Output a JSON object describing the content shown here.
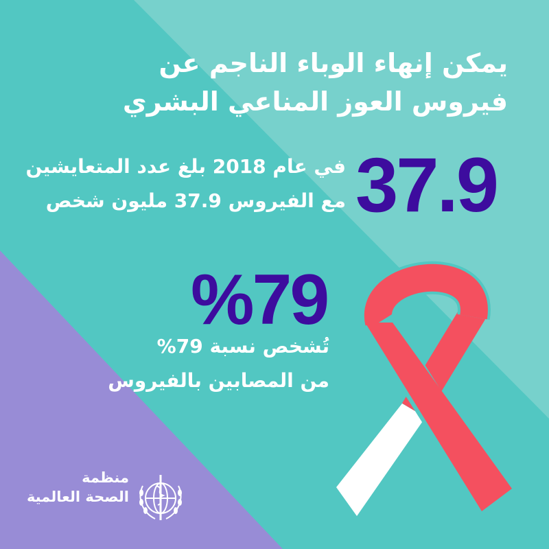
{
  "headline": {
    "line1": "يمكن إنهاء الوباء الناجم عن",
    "line2": "فيروس العوز المناعي البشري"
  },
  "stat_people": {
    "value": "37.9",
    "line1": "في عام 2018 بلغ عدد المتعايشين",
    "line2": "مع الفيروس 37.9 مليون شخص"
  },
  "stat_diagnosed": {
    "value": "%79",
    "line1": "تُشخص نسبة 79%",
    "line2": "من المصابين بالفيروس"
  },
  "logo": {
    "line1": "منظمة",
    "line2": "الصحة العالمية",
    "icon": "who-emblem-icon"
  },
  "ribbon_icon": "red-ribbon-icon",
  "colors": {
    "teal": "#52c7c2",
    "light_teal": "#77d1cc",
    "lavender": "#988cd6",
    "number_purple": "#3d0c9e",
    "ribbon_red": "#f4505f",
    "white": "#ffffff"
  }
}
